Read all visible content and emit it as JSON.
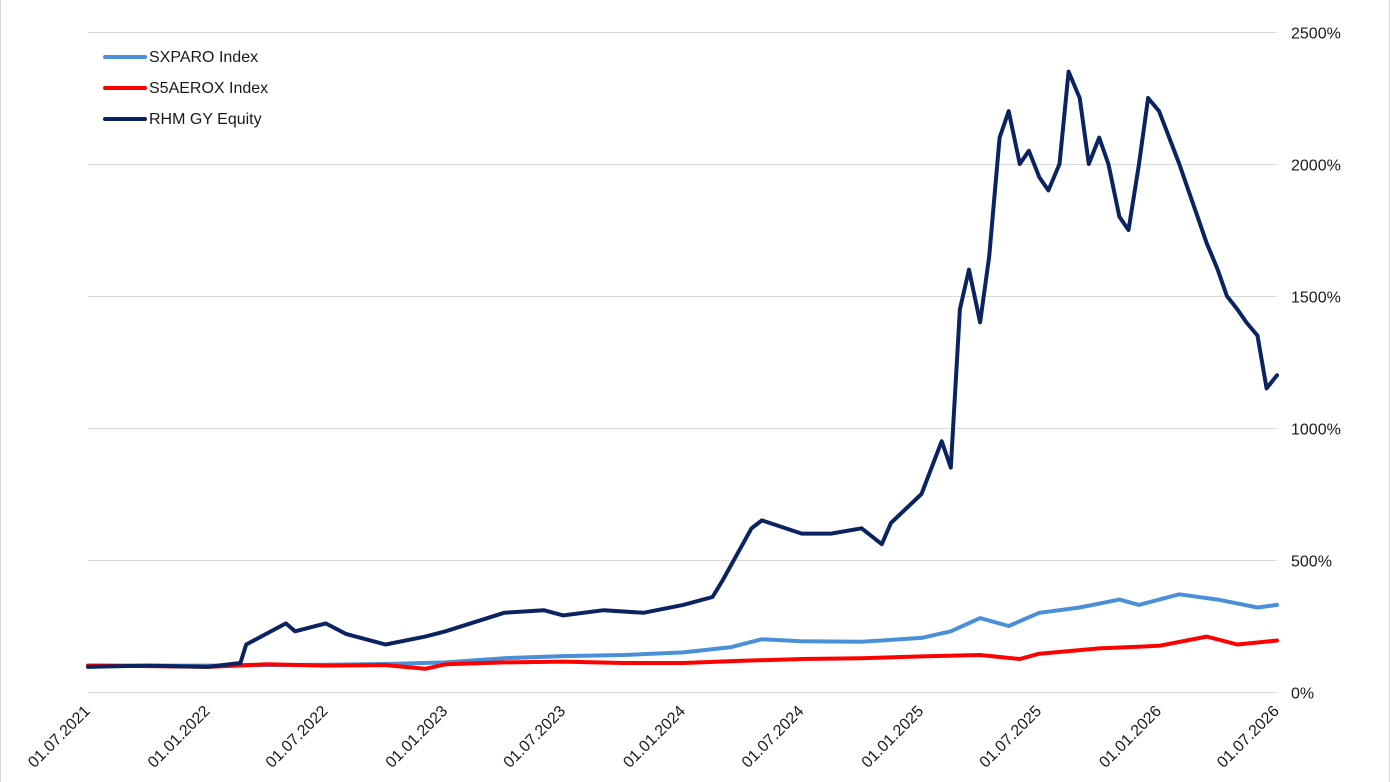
{
  "chart_data": {
    "type": "line",
    "title": "",
    "xlabel": "",
    "ylabel": "",
    "y_unit_suffix": "%",
    "ylim": [
      0,
      2500
    ],
    "yticks": [
      0,
      500,
      1000,
      1500,
      2000,
      2500
    ],
    "ytick_labels": [
      "0%",
      "500%",
      "1000%",
      "1500%",
      "2000%",
      "2500%"
    ],
    "xlim": [
      "01.07.2021",
      "01.07.2026"
    ],
    "xtick_labels": [
      "01.07.2021",
      "01.01.2022",
      "01.07.2022",
      "01.01.2023",
      "01.07.2023",
      "01.01.2024",
      "01.07.2024",
      "01.01.2025",
      "01.07.2025",
      "01.01.2026",
      "01.07.2026"
    ],
    "grid": "horizontal",
    "legend_position": "top-left",
    "y_axis_side": "right",
    "series": [
      {
        "name": "SXPARO Index",
        "color": "#4a90d9",
        "x": [
          "01.07.2021",
          "01.10.2021",
          "01.01.2022",
          "15.03.2022",
          "01.07.2022",
          "01.10.2022",
          "01.01.2023",
          "01.04.2023",
          "01.07.2023",
          "01.10.2023",
          "01.01.2024",
          "15.03.2024",
          "01.05.2024",
          "01.07.2024",
          "01.10.2024",
          "01.01.2025",
          "15.02.2025",
          "01.04.2025",
          "15.05.2025",
          "01.07.2025",
          "01.09.2025",
          "01.11.2025",
          "01.12.2025",
          "01.02.2026",
          "01.04.2026",
          "01.06.2026",
          "01.07.2026"
        ],
        "values": [
          100,
          100,
          100,
          102,
          103,
          106,
          112,
          128,
          136,
          140,
          150,
          170,
          200,
          192,
          190,
          205,
          230,
          280,
          250,
          300,
          320,
          350,
          330,
          370,
          350,
          320,
          330
        ]
      },
      {
        "name": "S5AEROX Index",
        "color": "#ff0000",
        "x": [
          "01.07.2021",
          "01.10.2021",
          "01.01.2022",
          "01.04.2022",
          "01.07.2022",
          "01.10.2022",
          "01.12.2022",
          "01.01.2023",
          "01.04.2023",
          "01.07.2023",
          "01.10.2023",
          "01.01.2024",
          "01.04.2024",
          "01.07.2024",
          "01.10.2024",
          "01.01.2025",
          "01.04.2025",
          "01.06.2025",
          "01.07.2025",
          "01.10.2025",
          "01.01.2026",
          "15.03.2026",
          "01.05.2026",
          "01.07.2026"
        ],
        "values": [
          100,
          98,
          95,
          105,
          100,
          102,
          88,
          105,
          112,
          115,
          110,
          110,
          118,
          125,
          128,
          135,
          140,
          125,
          145,
          165,
          175,
          210,
          180,
          195
        ]
      },
      {
        "name": "RHM GY Equity",
        "color": "#0b2461",
        "x": [
          "01.07.2021",
          "01.10.2021",
          "01.01.2022",
          "20.02.2022",
          "01.03.2022",
          "01.05.2022",
          "15.05.2022",
          "01.07.2022",
          "01.08.2022",
          "01.10.2022",
          "01.12.2022",
          "01.01.2023",
          "01.04.2023",
          "01.06.2023",
          "01.07.2023",
          "01.09.2023",
          "01.11.2023",
          "01.01.2024",
          "15.02.2024",
          "01.03.2024",
          "15.04.2024",
          "01.05.2024",
          "01.07.2024",
          "15.08.2024",
          "01.10.2024",
          "01.11.2024",
          "15.11.2024",
          "01.01.2025",
          "01.02.2025",
          "15.02.2025",
          "01.03.2025",
          "15.03.2025",
          "01.04.2025",
          "15.04.2025",
          "01.05.2025",
          "15.05.2025",
          "01.06.2025",
          "15.06.2025",
          "01.07.2025",
          "15.07.2025",
          "01.08.2025",
          "15.08.2025",
          "01.09.2025",
          "15.09.2025",
          "01.10.2025",
          "15.10.2025",
          "01.11.2025",
          "15.11.2025",
          "01.12.2025",
          "15.12.2025",
          "01.01.2026",
          "01.02.2026",
          "15.02.2026",
          "01.03.2026",
          "15.03.2026",
          "01.04.2026",
          "15.04.2026",
          "01.05.2026",
          "15.05.2026",
          "01.06.2026",
          "15.06.2026",
          "01.07.2026"
        ],
        "values": [
          95,
          100,
          95,
          110,
          180,
          260,
          230,
          260,
          220,
          180,
          210,
          230,
          300,
          310,
          290,
          310,
          300,
          330,
          360,
          420,
          620,
          650,
          600,
          600,
          620,
          560,
          640,
          750,
          950,
          850,
          1450,
          1600,
          1400,
          1650,
          2100,
          2200,
          2000,
          2050,
          1950,
          1900,
          2000,
          2350,
          2250,
          2000,
          2100,
          2000,
          1800,
          1750,
          2000,
          2250,
          2200,
          2000,
          1900,
          1800,
          1700,
          1600,
          1500,
          1450,
          1400,
          1350,
          1150,
          1200
        ]
      }
    ]
  }
}
